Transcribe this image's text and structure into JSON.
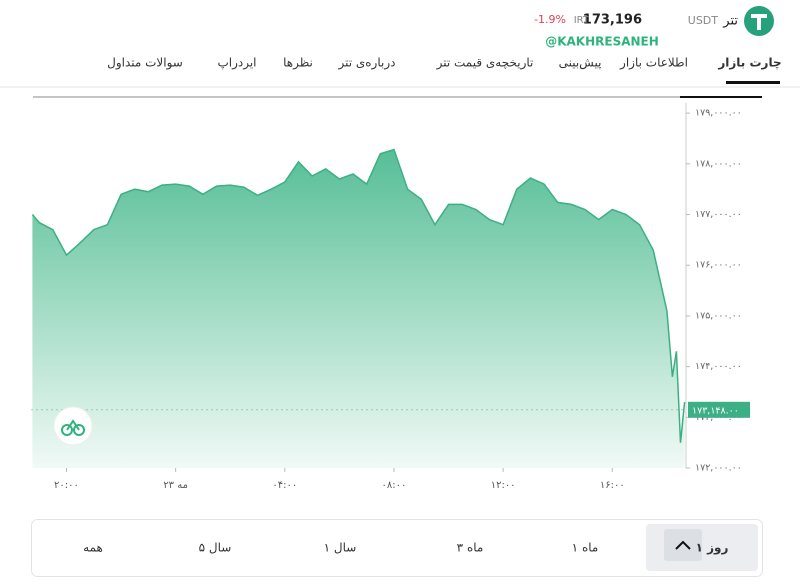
{
  "header": {
    "name": "تتر",
    "symbol": "USDT",
    "price": "173,196",
    "unit": "IRT",
    "change": "-1.9%",
    "watermark": "@KAKHRESANEH"
  },
  "tabs": [
    "چارت بازار",
    "اطلاعات بازار",
    "پیش‌بینی",
    "تاریخچه‌ی قیمت تتر",
    "درباره‌ی تتر",
    "نظرها",
    "ایردراپ",
    "سوالات متداول"
  ],
  "chart_data": {
    "type": "area",
    "color": "#3daf85",
    "x": [
      18.75,
      19,
      19.5,
      20,
      20.5,
      21,
      21.5,
      22,
      22.5,
      23,
      23.5,
      24,
      24.5,
      25,
      25.5,
      26,
      26.5,
      27,
      27.5,
      28,
      28.5,
      29,
      29.5,
      30,
      30.5,
      31,
      31.5,
      32,
      32.5,
      33,
      33.5,
      34,
      34.5,
      35,
      35.5,
      36,
      36.5,
      37,
      37.5,
      38,
      38.5,
      39,
      39.5,
      40,
      40.5,
      41,
      41.5,
      42,
      42.2,
      42.35,
      42.5,
      42.65
    ],
    "values": [
      177000,
      176840,
      176700,
      176200,
      176440,
      176700,
      176800,
      177400,
      177500,
      177450,
      177580,
      177600,
      177560,
      177400,
      177560,
      177580,
      177540,
      177380,
      177500,
      177640,
      178040,
      177760,
      177900,
      177700,
      177800,
      177600,
      178200,
      178280,
      177500,
      177300,
      176800,
      177200,
      177200,
      177100,
      176900,
      176800,
      177500,
      177720,
      177600,
      177240,
      177200,
      177100,
      176900,
      177100,
      177000,
      176800,
      176300,
      175100,
      173800,
      174300,
      172500,
      173300
    ],
    "xlim": [
      18.7,
      42.7
    ],
    "ylim": [
      172000,
      179200
    ],
    "xticks": [
      {
        "value": 20,
        "label": "۲۰:۰۰"
      },
      {
        "value": 24,
        "label": "۲۳ مه"
      },
      {
        "value": 28,
        "label": "۰۴:۰۰"
      },
      {
        "value": 32,
        "label": "۰۸:۰۰"
      },
      {
        "value": 36,
        "label": "۱۲:۰۰"
      },
      {
        "value": 40,
        "label": "۱۶:۰۰"
      }
    ],
    "yticks": [
      {
        "value": 172000,
        "label": "۱۷۲,۰۰۰.۰۰"
      },
      {
        "value": 173000,
        "label": "۱۷۳,۰۰۰.۰۰"
      },
      {
        "value": 174000,
        "label": "۱۷۴,۰۰۰.۰۰"
      },
      {
        "value": 175000,
        "label": "۱۷۵,۰۰۰.۰۰"
      },
      {
        "value": 176000,
        "label": "۱۷۶,۰۰۰.۰۰"
      },
      {
        "value": 177000,
        "label": "۱۷۷,۰۰۰.۰۰"
      },
      {
        "value": 178000,
        "label": "۱۷۸,۰۰۰.۰۰"
      },
      {
        "value": 179000,
        "label": "۱۷۹,۰۰۰.۰۰"
      }
    ],
    "last_price": {
      "value": 173148,
      "label": "۱۷۳,۱۴۸.۰۰"
    }
  },
  "ranges": [
    "۱ روز",
    "۱ ماه",
    "۳ ماه",
    "۱ سال",
    "۵ سال",
    "همه"
  ]
}
